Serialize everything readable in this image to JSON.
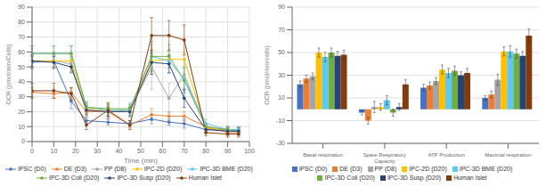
{
  "chart_data": [
    {
      "type": "line",
      "x": [
        0,
        10,
        18,
        25,
        35,
        45,
        55,
        63,
        70,
        80,
        90,
        95
      ],
      "xlabel": "Time (min)",
      "ylabel": "OCR (pmol/min/Cells)",
      "xlim": [
        0,
        100
      ],
      "ylim": [
        0,
        90
      ],
      "xticks": [
        0,
        10,
        20,
        30,
        40,
        50,
        60,
        70,
        80,
        90,
        100
      ],
      "yticks": [
        0,
        10,
        20,
        30,
        40,
        50,
        60,
        70,
        80,
        90
      ],
      "grid": true,
      "legend": "bottom",
      "series": [
        {
          "name": "iPSC (D0)",
          "color": "#4472C4",
          "marker": "circle",
          "values": [
            53,
            54,
            27,
            14,
            13,
            12,
            15,
            13,
            12,
            8,
            8,
            8
          ],
          "yerr": [
            4,
            4,
            5,
            2,
            2,
            2,
            3,
            2,
            3,
            2,
            2,
            2
          ]
        },
        {
          "name": "DE (D3)",
          "color": "#ED7D31",
          "marker": "circle",
          "values": [
            33,
            32,
            33,
            20,
            20,
            11,
            18,
            17,
            17,
            10,
            6,
            6
          ],
          "yerr": [
            3,
            3,
            3,
            3,
            3,
            2,
            4,
            3,
            3,
            2,
            2,
            2
          ]
        },
        {
          "name": "PP (D8)",
          "color": "#A5A5A5",
          "marker": "circle",
          "values": [
            54,
            54,
            52,
            21,
            20,
            21,
            50,
            29,
            45,
            9,
            7,
            7
          ],
          "yerr": [
            5,
            5,
            5,
            5,
            5,
            5,
            15,
            10,
            10,
            3,
            2,
            2
          ]
        },
        {
          "name": "IPC-2D (D20)",
          "color": "#FFC000",
          "marker": "circle",
          "values": [
            54,
            54,
            54,
            22,
            21,
            21,
            54,
            55,
            55,
            9,
            8,
            8
          ],
          "yerr": [
            4,
            4,
            4,
            3,
            3,
            3,
            8,
            5,
            5,
            2,
            2,
            2
          ]
        },
        {
          "name": "IPC-3D BME (D20)",
          "color": "#5BC8F5",
          "marker": "circle",
          "values": [
            59,
            59,
            59,
            23,
            21,
            21,
            57,
            54,
            42,
            12,
            8,
            8
          ],
          "yerr": [
            5,
            5,
            5,
            4,
            3,
            3,
            12,
            8,
            8,
            3,
            2,
            2
          ]
        },
        {
          "name": "IPC-3D Coll (D20)",
          "color": "#70AD47",
          "marker": "circle",
          "values": [
            59,
            59,
            59,
            23,
            22,
            22,
            57,
            57,
            41,
            10,
            8,
            7
          ],
          "yerr": [
            5,
            5,
            5,
            3,
            3,
            3,
            10,
            8,
            8,
            2,
            2,
            2
          ]
        },
        {
          "name": "IPC-3D Susp (D20)",
          "color": "#264478",
          "marker": "circle",
          "values": [
            54,
            53,
            50,
            21,
            20,
            20,
            53,
            52,
            29,
            8,
            7,
            7
          ],
          "yerr": [
            4,
            4,
            4,
            3,
            3,
            3,
            8,
            6,
            6,
            2,
            2,
            2
          ]
        },
        {
          "name": "Human Islet",
          "color": "#833C0A",
          "marker": "circle",
          "values": [
            34,
            34,
            32,
            11,
            21,
            11,
            71,
            71,
            68,
            6,
            5,
            5
          ],
          "yerr": [
            5,
            5,
            4,
            3,
            5,
            3,
            12,
            10,
            10,
            2,
            2,
            2
          ]
        }
      ]
    },
    {
      "type": "bar",
      "categories": [
        "Basal respiration",
        "Spare Respiratory\nCapacity",
        "ATP Production",
        "Maximal respiration"
      ],
      "ylabel": "OCR (pmol/min/cells)",
      "ylim": [
        -30,
        90
      ],
      "yticks": [
        -30,
        -10,
        10,
        30,
        50,
        70,
        90
      ],
      "grid": "y",
      "legend": "bottom",
      "series": [
        {
          "name": "iPSC (D0)",
          "color": "#4472C4",
          "values": [
            22,
            -3,
            19,
            10
          ],
          "yerr": [
            3,
            2,
            3,
            2
          ]
        },
        {
          "name": "DE (D3)",
          "color": "#ED7D31",
          "values": [
            27,
            -10,
            21,
            13
          ],
          "yerr": [
            3,
            3,
            3,
            3
          ]
        },
        {
          "name": "PP (D8)",
          "color": "#A5A5A5",
          "values": [
            29,
            2,
            25,
            26
          ],
          "yerr": [
            3,
            5,
            3,
            5
          ]
        },
        {
          "name": "IPC-2D (D20)",
          "color": "#FFC000",
          "values": [
            50,
            2,
            35,
            51
          ],
          "yerr": [
            4,
            3,
            4,
            4
          ]
        },
        {
          "name": "IPC-3D BME (D20)",
          "color": "#5BC8F5",
          "values": [
            46,
            8,
            32,
            51
          ],
          "yerr": [
            4,
            4,
            4,
            5
          ]
        },
        {
          "name": "IPC-3D Coll (D20)",
          "color": "#70AD47",
          "values": [
            50,
            -3,
            34,
            49
          ],
          "yerr": [
            4,
            3,
            4,
            4
          ]
        },
        {
          "name": "IPC-3D Susp (D20)",
          "color": "#264478",
          "values": [
            47,
            2,
            30,
            47
          ],
          "yerr": [
            4,
            3,
            3,
            4
          ]
        },
        {
          "name": "Human Islet",
          "color": "#833C0A",
          "values": [
            48,
            22,
            32,
            65
          ],
          "yerr": [
            4,
            4,
            4,
            6
          ]
        }
      ]
    }
  ]
}
